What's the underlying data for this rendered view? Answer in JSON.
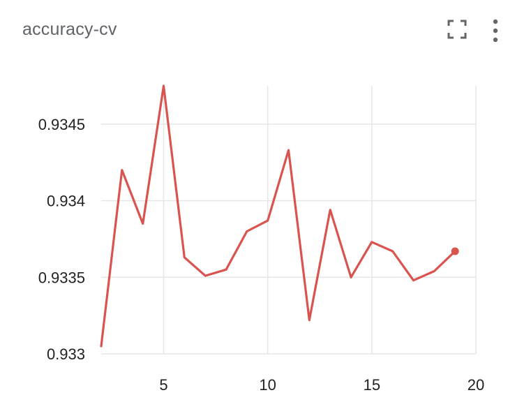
{
  "panel": {
    "title": "accuracy-cv"
  },
  "icons": {
    "expand": "fullscreen-icon",
    "menu": "more-vert-icon"
  },
  "chart_data": {
    "type": "line",
    "title": "accuracy-cv",
    "xlabel": "",
    "ylabel": "",
    "xlim": [
      2,
      20
    ],
    "ylim": [
      0.933,
      0.93475
    ],
    "grid": true,
    "x_ticks": [
      5,
      10,
      15,
      20
    ],
    "x_tick_labels": [
      "5",
      "10",
      "15",
      "20"
    ],
    "y_ticks": [
      0.933,
      0.9335,
      0.934,
      0.9345
    ],
    "y_tick_labels": [
      "0.933",
      "0.9335",
      "0.934",
      "0.9345"
    ],
    "color": "#d9534f",
    "series": [
      {
        "x": [
          2,
          3,
          4,
          5,
          6,
          7,
          8,
          9,
          10,
          11,
          12,
          13,
          14,
          15,
          16,
          17,
          18,
          19
        ],
        "values": [
          0.93305,
          0.9342,
          0.93385,
          0.93475,
          0.93363,
          0.93351,
          0.93355,
          0.9338,
          0.93387,
          0.93433,
          0.93322,
          0.93394,
          0.9335,
          0.93373,
          0.93367,
          0.93348,
          0.93354,
          0.93367
        ]
      }
    ]
  }
}
